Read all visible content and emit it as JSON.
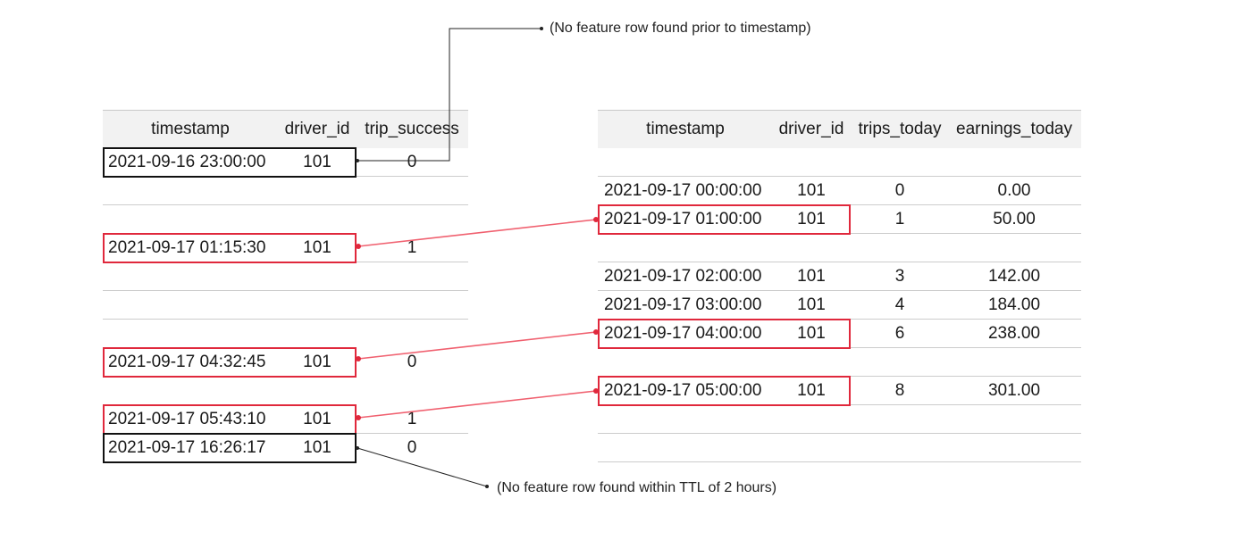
{
  "left_table": {
    "headers": [
      "timestamp",
      "driver_id",
      "trip_success"
    ],
    "rows": [
      [
        "2021-09-16 23:00:00",
        "101",
        "0"
      ],
      [
        "",
        "",
        ""
      ],
      [
        "2021-09-17 01:15:30",
        "101",
        "1"
      ],
      [
        "",
        "",
        ""
      ],
      [
        "",
        "",
        ""
      ],
      [
        "2021-09-17 04:32:45",
        "101",
        "0"
      ],
      [
        "",
        "",
        ""
      ],
      [
        "2021-09-17 05:43:10",
        "101",
        "1"
      ],
      [
        "2021-09-17 16:26:17",
        "101",
        "0"
      ]
    ]
  },
  "right_table": {
    "headers": [
      "timestamp",
      "driver_id",
      "trips_today",
      "earnings_today"
    ],
    "rows": [
      [
        "",
        "",
        "",
        ""
      ],
      [
        "2021-09-17 00:00:00",
        "101",
        "0",
        "0.00"
      ],
      [
        "2021-09-17 01:00:00",
        "101",
        "1",
        "50.00"
      ],
      [
        "",
        "",
        "",
        ""
      ],
      [
        "2021-09-17 02:00:00",
        "101",
        "3",
        "142.00"
      ],
      [
        "2021-09-17 03:00:00",
        "101",
        "4",
        "184.00"
      ],
      [
        "2021-09-17 04:00:00",
        "101",
        "6",
        "238.00"
      ],
      [
        "",
        "",
        "",
        ""
      ],
      [
        "2021-09-17 05:00:00",
        "101",
        "8",
        "301.00"
      ],
      [
        "",
        "",
        "",
        ""
      ],
      [
        "",
        "",
        "",
        ""
      ]
    ]
  },
  "annotations": {
    "no_prior": "(No feature row found prior to timestamp)",
    "no_ttl": "(No feature row found within TTL of 2 hours)"
  },
  "colors": {
    "match_line": "#f0606f",
    "match_box": "#e0283c",
    "miss_box": "#111111",
    "header_bg": "#f2f2f2",
    "rule": "#cccccc"
  }
}
